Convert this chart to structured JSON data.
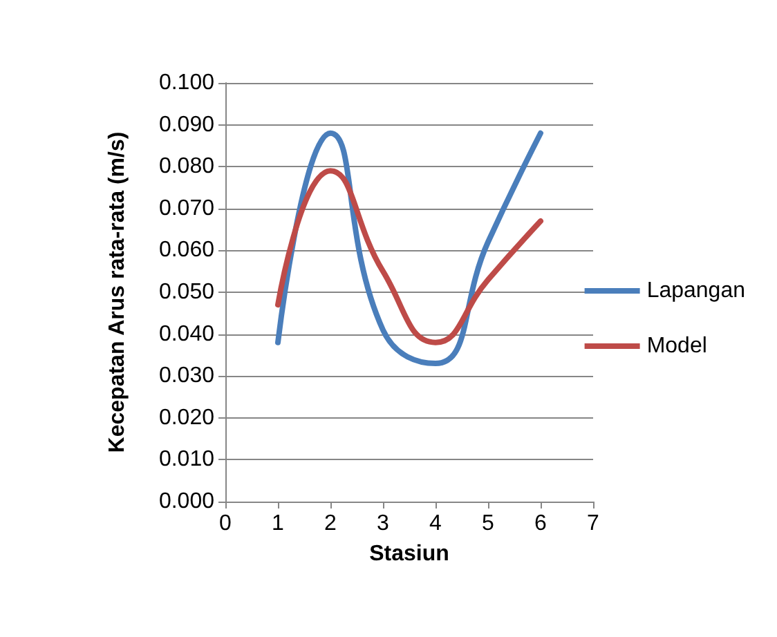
{
  "chart_data": {
    "type": "line",
    "xlabel": "Stasiun",
    "ylabel": "Kecepatan Arus rata-rata (m/s)",
    "x": [
      1,
      2,
      3,
      4,
      5,
      6
    ],
    "series": [
      {
        "name": "Lapangan",
        "color": "#4a7ebb",
        "values": [
          0.038,
          0.088,
          0.041,
          0.033,
          0.062,
          0.088
        ]
      },
      {
        "name": "Model",
        "color": "#be4b48",
        "values": [
          0.047,
          0.079,
          0.055,
          0.038,
          0.053,
          0.067
        ]
      }
    ],
    "xlim": [
      0,
      7
    ],
    "xticks": [
      0,
      1,
      2,
      3,
      4,
      5,
      6,
      7
    ],
    "ylim": [
      0,
      0.1
    ],
    "yticks": [
      {
        "value": 0,
        "label": "0.000"
      },
      {
        "value": 0.01,
        "label": "0.010"
      },
      {
        "value": 0.02,
        "label": "0.020"
      },
      {
        "value": 0.03,
        "label": "0.030"
      },
      {
        "value": 0.04,
        "label": "0.040"
      },
      {
        "value": 0.05,
        "label": "0.050"
      },
      {
        "value": 0.06,
        "label": "0.060"
      },
      {
        "value": 0.07,
        "label": "0.070"
      },
      {
        "value": 0.08,
        "label": "0.080"
      },
      {
        "value": 0.09,
        "label": "0.090"
      },
      {
        "value": 0.1,
        "label": "0.100"
      }
    ],
    "grid": "y",
    "legend": "right",
    "marker": "none",
    "line_style": "solid"
  }
}
